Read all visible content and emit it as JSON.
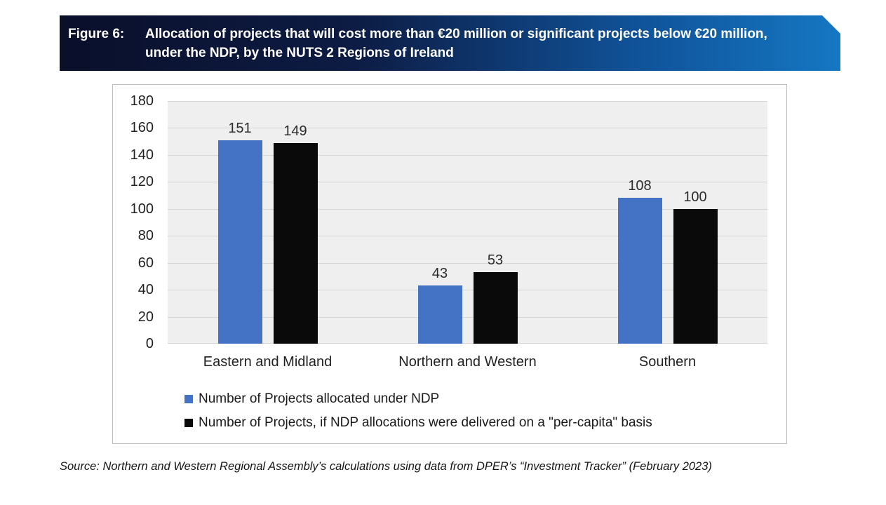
{
  "figure_header": {
    "label": "Figure 6:",
    "title_line1": "Allocation of projects that will cost more than €20 million or significant projects below €20 million,",
    "title_line2": "under the NDP, by the NUTS 2 Regions of Ireland"
  },
  "chart_data": {
    "type": "bar",
    "categories": [
      "Eastern and Midland",
      "Northern and Western",
      "Southern"
    ],
    "series": [
      {
        "name": "Number of Projects allocated under NDP",
        "color": "#4472C4",
        "values": [
          151,
          43,
          108
        ]
      },
      {
        "name": "Number of Projects, if NDP allocations were delivered on a \"per-capita\" basis",
        "color": "#0A0A0A",
        "values": [
          149,
          53,
          100
        ]
      }
    ],
    "ylim": [
      0,
      180
    ],
    "ytick_step": 20,
    "grid": true,
    "data_labels": true,
    "legend_position": "bottom-left",
    "plot_background": "#EFEFEF",
    "gridline_color": "#D6D6D6",
    "xlabel": "",
    "ylabel": ""
  },
  "source_note": "Source: Northern and Western Regional Assembly’s calculations using data from DPER’s “Investment Tracker” (February 2023)"
}
